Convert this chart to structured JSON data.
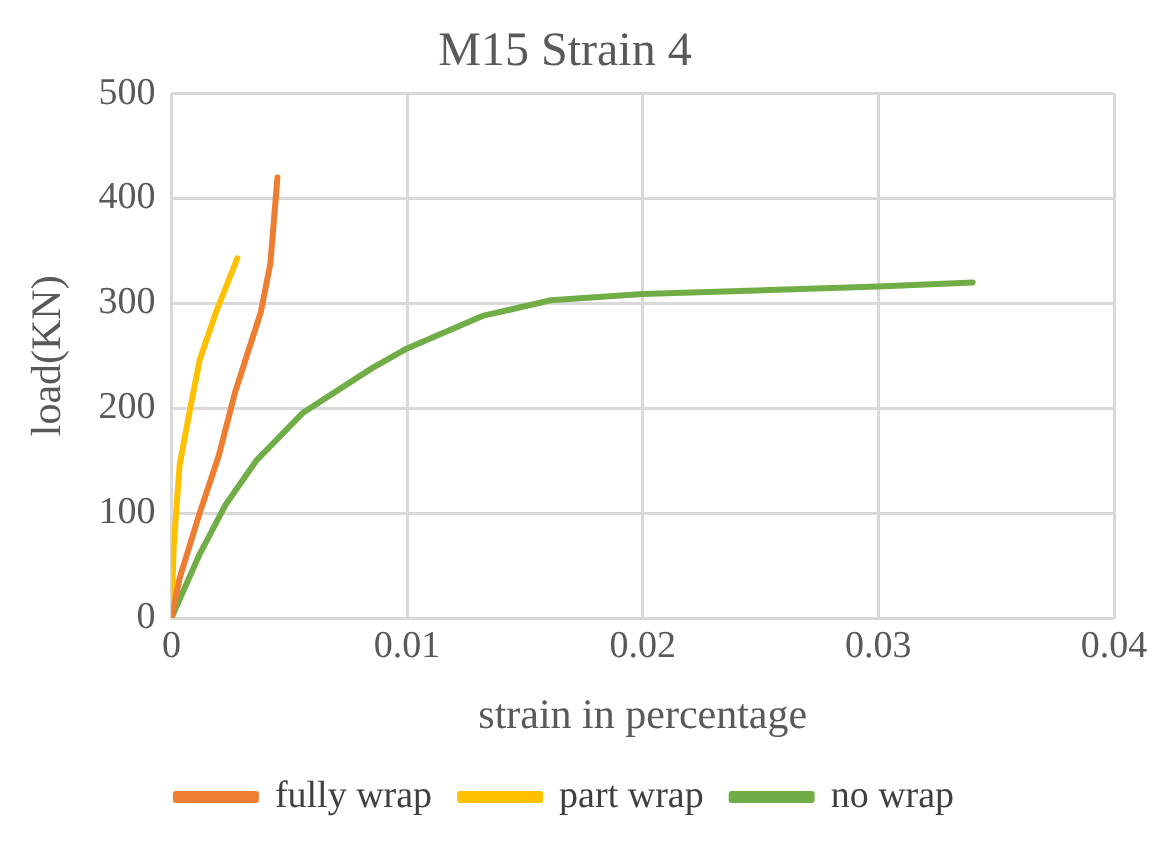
{
  "chart_data": {
    "type": "line",
    "title": "M15 Strain 4",
    "xlabel": "strain in percentage",
    "ylabel": "load(KN)",
    "xlim": [
      0,
      0.04
    ],
    "xticks": [
      0,
      0.01,
      0.02,
      0.03,
      0.04
    ],
    "ylim": [
      0,
      500
    ],
    "yticks": [
      0,
      100,
      200,
      300,
      400,
      500
    ],
    "grid": true,
    "legend": "bottom",
    "marker": "none",
    "series": [
      {
        "name": "fully wrap",
        "color": "#ed7d31",
        "x": [
          0,
          0.00035,
          0.0012,
          0.002,
          0.0027,
          0.0038,
          0.0042,
          0.0045
        ],
        "values": [
          0,
          38,
          100,
          154,
          215,
          292,
          338,
          420
        ]
      },
      {
        "name": "part wrap",
        "color": "#ffc000",
        "x": [
          0,
          0.0001,
          0.00035,
          0.0008,
          0.0012,
          0.0019,
          0.0028
        ],
        "values": [
          0,
          69,
          146,
          200,
          246,
          292,
          343
        ]
      },
      {
        "name": "no wrap",
        "color": "#70ad47",
        "x": [
          0,
          0.0012,
          0.0023,
          0.0036,
          0.0056,
          0.0085,
          0.01,
          0.0132,
          0.0161,
          0.02,
          0.03,
          0.034
        ],
        "values": [
          0,
          61,
          108,
          150,
          196,
          238,
          257,
          288,
          303,
          309,
          316,
          320
        ]
      }
    ]
  }
}
